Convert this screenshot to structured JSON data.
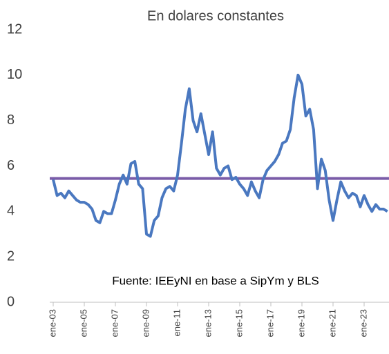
{
  "chart_data": {
    "type": "line",
    "title": "En dolares constantes",
    "annotation": "Fuente: IEEyNI en base a SipYm y BLS",
    "categories": [
      "ene-03",
      null,
      null,
      null,
      null,
      null,
      null,
      null,
      "ene-05",
      null,
      null,
      null,
      null,
      null,
      null,
      null,
      "ene-07",
      null,
      null,
      null,
      null,
      null,
      null,
      null,
      "ene-09",
      null,
      null,
      null,
      null,
      null,
      null,
      null,
      "ene-11",
      null,
      null,
      null,
      null,
      null,
      null,
      null,
      "ene-13",
      null,
      null,
      null,
      null,
      null,
      null,
      null,
      "ene-15",
      null,
      null,
      null,
      null,
      null,
      null,
      null,
      "ene-17",
      null,
      null,
      null,
      null,
      null,
      null,
      null,
      "ene-19",
      null,
      null,
      null,
      null,
      null,
      null,
      null,
      "ene-21",
      null,
      null,
      null,
      null,
      null,
      null,
      null,
      "ene-23",
      null,
      null,
      null,
      null,
      null,
      null
    ],
    "series": [
      {
        "color": "#4a78c0",
        "values": [
          5.4,
          4.7,
          4.8,
          4.6,
          4.9,
          4.7,
          4.5,
          4.4,
          4.4,
          4.3,
          4.1,
          3.6,
          3.5,
          4.0,
          3.9,
          3.9,
          4.5,
          5.2,
          5.6,
          5.2,
          6.1,
          6.2,
          5.2,
          5.0,
          3.0,
          2.9,
          3.6,
          3.8,
          4.6,
          5.0,
          5.1,
          4.9,
          5.6,
          7.0,
          8.5,
          9.4,
          8.0,
          7.5,
          8.3,
          7.4,
          6.5,
          7.5,
          5.9,
          5.6,
          5.9,
          6.0,
          5.4,
          5.5,
          5.2,
          5.0,
          4.7,
          5.3,
          4.9,
          4.6,
          5.4,
          5.8,
          6.0,
          6.2,
          6.5,
          7.0,
          7.1,
          7.6,
          9.0,
          10.0,
          9.6,
          8.2,
          8.5,
          7.6,
          5.0,
          6.3,
          5.8,
          4.5,
          3.6,
          4.5,
          5.3,
          4.9,
          4.6,
          4.8,
          4.7,
          4.2,
          4.7,
          4.3,
          4.0,
          4.3,
          4.1,
          4.1,
          4.0
        ]
      }
    ],
    "hline": {
      "value": 5.45,
      "color": "#7a5ca8"
    },
    "ylim": [
      0,
      12
    ],
    "yticks": [
      0,
      2,
      4,
      6,
      8,
      10,
      12
    ],
    "grid": false
  }
}
